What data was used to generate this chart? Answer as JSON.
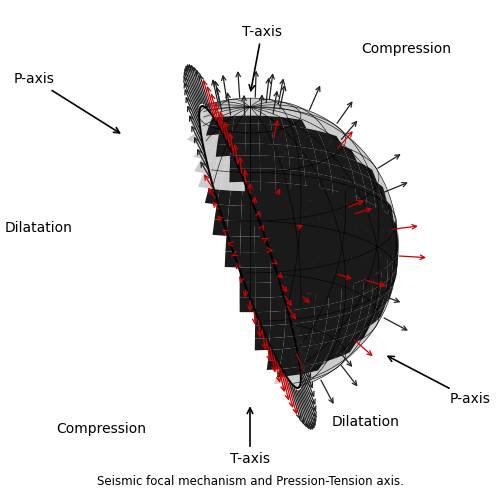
{
  "subtitle": "Seismic focal mechanism and Pression-Tension axis.",
  "background_color": "#ffffff",
  "sphere_color_dark": "#1a1a1a",
  "sphere_color_mid_dark": "#2a2a2a",
  "sphere_color_light": "#cccccc",
  "sphere_color_mid_light": "#888888",
  "arrow_color_compression": "#cc0000",
  "arrow_color_dilatation": "#222222",
  "R": 1.0,
  "view_elev_deg": 20,
  "view_azim_deg": -50,
  "T_axis": [
    0.0,
    0.0,
    1.0
  ],
  "P_axis": [
    0.707,
    -0.707,
    0.0
  ],
  "grid_n_lon": 18,
  "grid_n_lat": 9,
  "hedge_n": 80,
  "hedge_scale": 0.32,
  "surface_arrow_nu": 12,
  "surface_arrow_nv": 7,
  "surface_arrow_scale": 0.22
}
